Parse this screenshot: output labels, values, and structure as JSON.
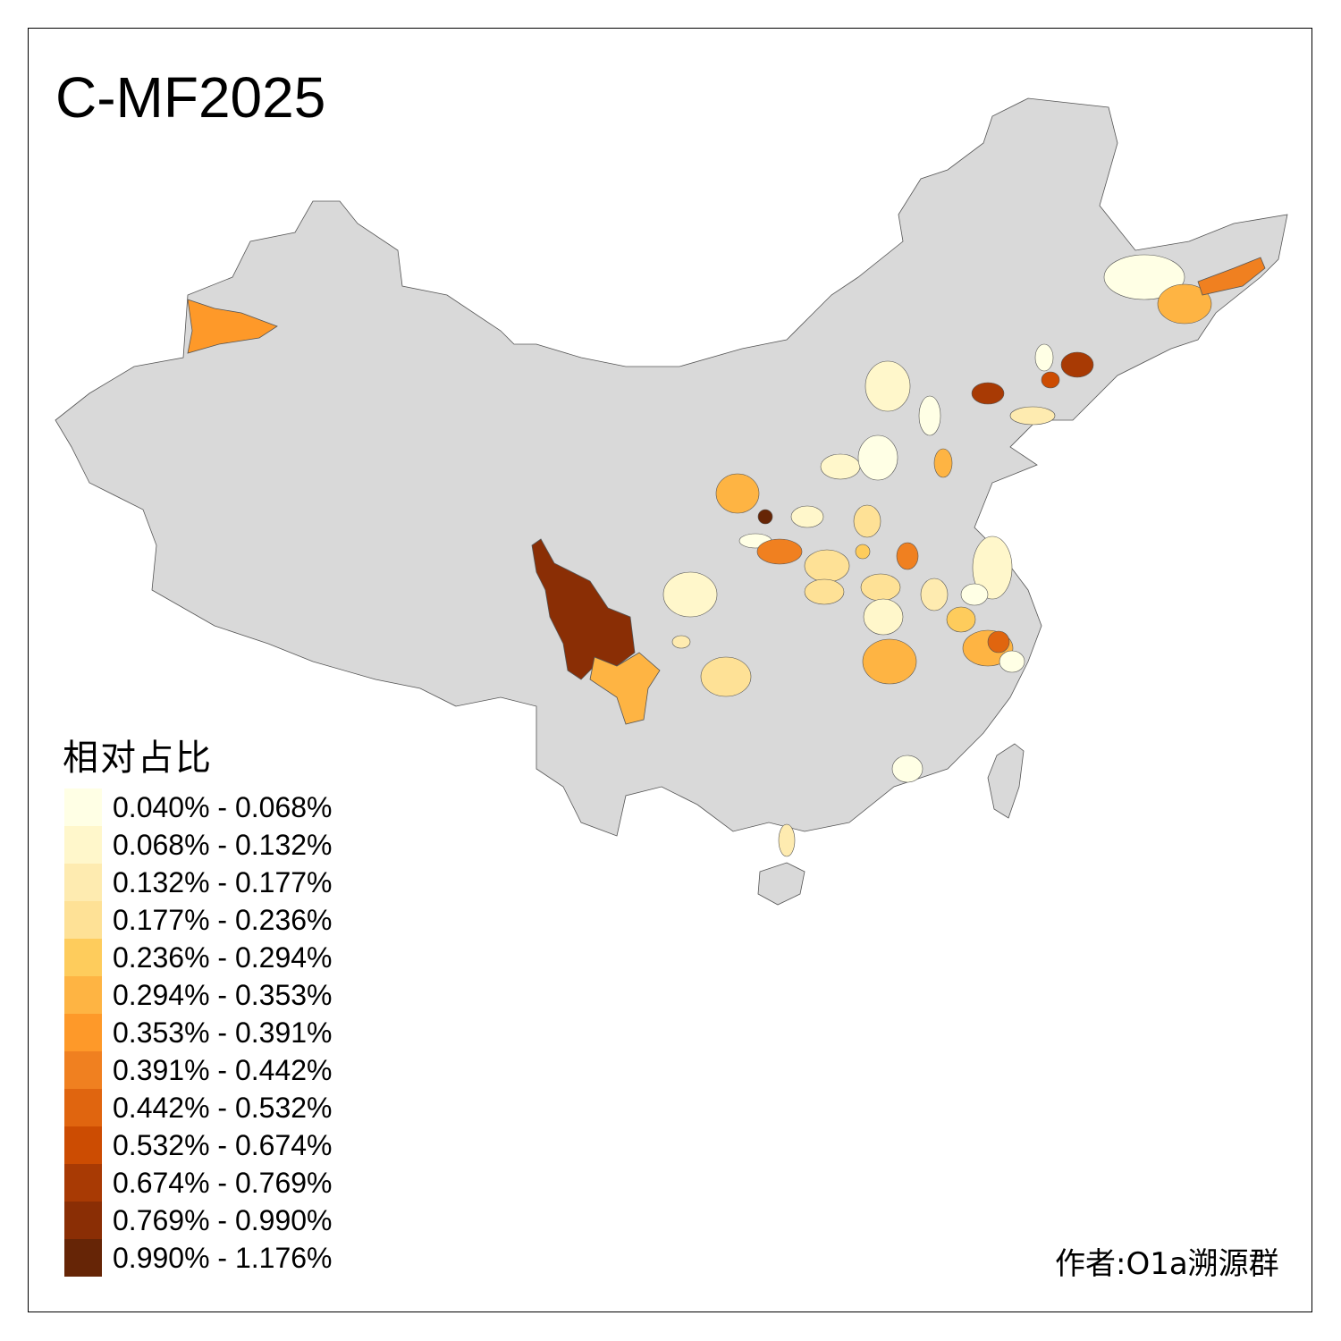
{
  "title": "C-MF2025",
  "legend": {
    "title": "相对占比",
    "classes": [
      {
        "label": "0.040% - 0.068%",
        "color": "#FFFFE5"
      },
      {
        "label": "0.068% - 0.132%",
        "color": "#FFF7CB"
      },
      {
        "label": "0.132% - 0.177%",
        "color": "#FEEBB0"
      },
      {
        "label": "0.177% - 0.236%",
        "color": "#FEE196"
      },
      {
        "label": "0.236% - 0.294%",
        "color": "#FECC5C"
      },
      {
        "label": "0.294% - 0.353%",
        "color": "#FEB443"
      },
      {
        "label": "0.353% - 0.391%",
        "color": "#FE9929"
      },
      {
        "label": "0.391% - 0.442%",
        "color": "#F08020"
      },
      {
        "label": "0.442% - 0.532%",
        "color": "#E0650F"
      },
      {
        "label": "0.532% - 0.674%",
        "color": "#CC4C02"
      },
      {
        "label": "0.674% - 0.769%",
        "color": "#A83A04"
      },
      {
        "label": "0.769% - 0.990%",
        "color": "#8A2E05"
      },
      {
        "label": "0.990% - 1.176%",
        "color": "#662506"
      }
    ]
  },
  "map": {
    "no_data_color": "#D9D9D9",
    "border_color": "#555555"
  },
  "author": "作者:O1a溯源群"
}
